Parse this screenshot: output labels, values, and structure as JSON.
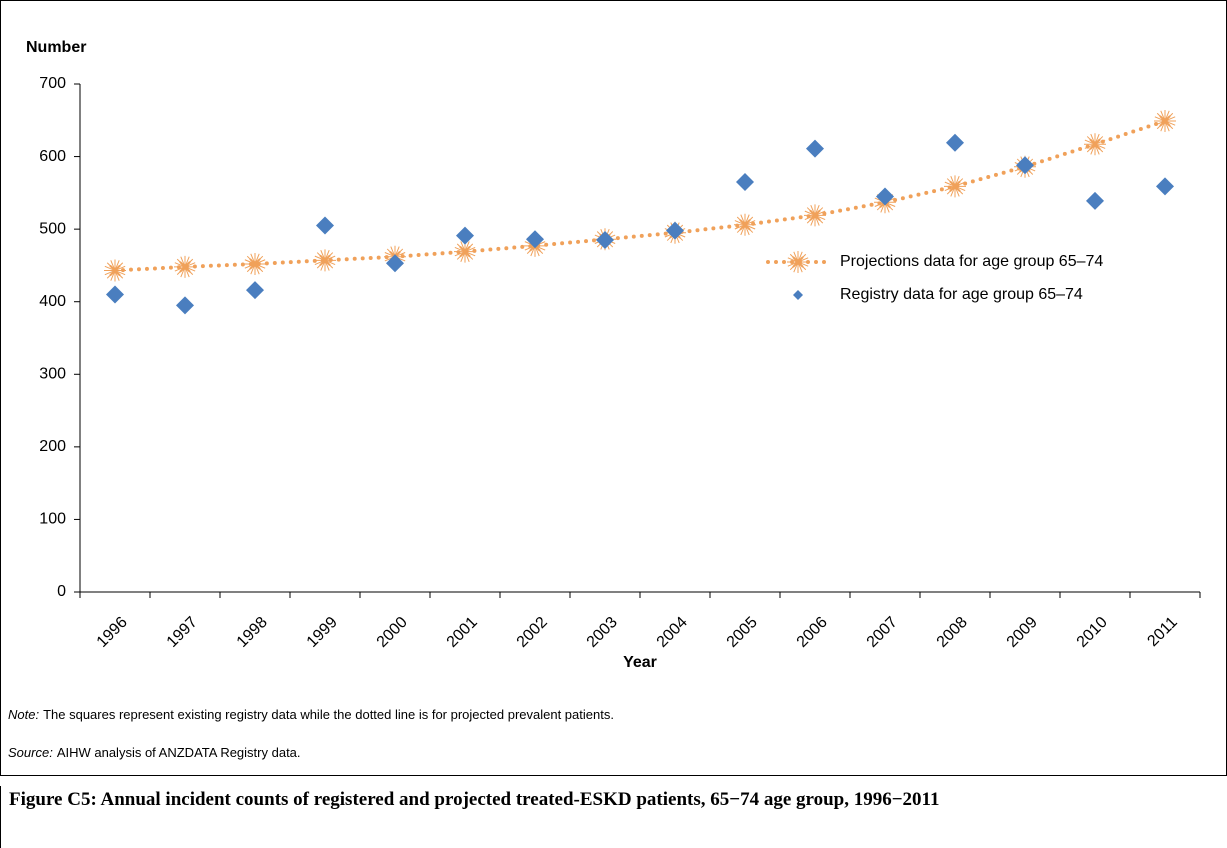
{
  "chart_data": {
    "type": "line",
    "y_label": "Number",
    "x_label": "Year",
    "categories": [
      "1996",
      "1997",
      "1998",
      "1999",
      "2000",
      "2001",
      "2002",
      "2003",
      "2004",
      "2005",
      "2006",
      "2007",
      "2008",
      "2009",
      "2010",
      "2011"
    ],
    "series": [
      {
        "name": "Projections data for age group 65–74",
        "color": "#f0a15a",
        "line": "dotted",
        "marker": "star",
        "values": [
          443,
          448,
          452,
          457,
          462,
          469,
          477,
          486,
          495,
          506,
          519,
          537,
          559,
          586,
          617,
          649
        ]
      },
      {
        "name": "Registry data for age group 65–74",
        "color": "#4a7ebf",
        "line": "none",
        "marker": "diamond",
        "values": [
          410,
          395,
          416,
          505,
          453,
          491,
          486,
          485,
          498,
          565,
          611,
          545,
          619,
          588,
          539,
          559
        ]
      }
    ],
    "ylim": [
      0,
      700
    ],
    "yticks": [
      0,
      100,
      200,
      300,
      400,
      500,
      600,
      700
    ],
    "grid": false,
    "legend": "right"
  },
  "note": {
    "label": "Note:",
    "text": "The squares represent existing registry data while the dotted line is for projected prevalent patients."
  },
  "source": {
    "label": "Source:",
    "text": "AIHW analysis of ANZDATA Registry data."
  },
  "caption": "Figure C5: Annual incident counts of registered and projected treated-ESKD patients, 65−74 age group, 1996−2011"
}
